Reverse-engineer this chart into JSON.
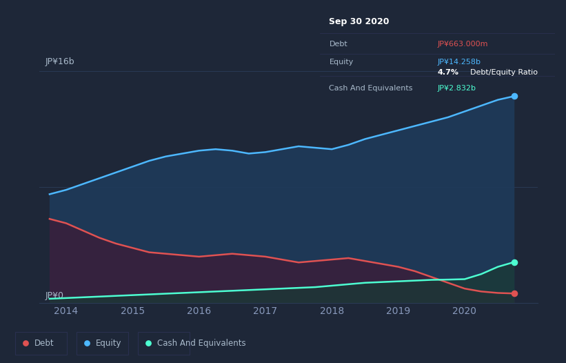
{
  "background_color": "#1e2738",
  "tooltip_bg": "#0d1117",
  "title": "Sep 30 2020",
  "tooltip": {
    "date": "Sep 30 2020",
    "debt_label": "Debt",
    "debt_value": "JP¥663.000m",
    "equity_label": "Equity",
    "equity_value": "JP¥14.258b",
    "ratio": "4.7% Debt/Equity Ratio",
    "cash_label": "Cash And Equivalents",
    "cash_value": "JP¥2.832b"
  },
  "ylabel_top": "JP¥16b",
  "ylabel_bottom": "JP¥0",
  "x_labels": [
    "2014",
    "2015",
    "2016",
    "2017",
    "2018",
    "2019",
    "2020"
  ],
  "debt_color": "#e05252",
  "equity_color": "#4db8ff",
  "cash_color": "#4dffd2",
  "equity_fill": "#1e3a5a",
  "debt_fill": "#3a1f3a",
  "cash_fill": "#1a3a35",
  "equity_data_x": [
    2013.75,
    2014.0,
    2014.25,
    2014.5,
    2014.75,
    2015.0,
    2015.25,
    2015.5,
    2015.75,
    2016.0,
    2016.25,
    2016.5,
    2016.75,
    2017.0,
    2017.25,
    2017.5,
    2017.75,
    2018.0,
    2018.25,
    2018.5,
    2018.75,
    2019.0,
    2019.25,
    2019.5,
    2019.75,
    2020.0,
    2020.25,
    2020.5,
    2020.75
  ],
  "equity_data_y": [
    7.5,
    7.8,
    8.2,
    8.6,
    9.0,
    9.4,
    9.8,
    10.1,
    10.3,
    10.5,
    10.6,
    10.5,
    10.3,
    10.4,
    10.6,
    10.8,
    10.7,
    10.6,
    10.9,
    11.3,
    11.6,
    11.9,
    12.2,
    12.5,
    12.8,
    13.2,
    13.6,
    14.0,
    14.258
  ],
  "debt_data_x": [
    2013.75,
    2014.0,
    2014.25,
    2014.5,
    2014.75,
    2015.0,
    2015.25,
    2015.5,
    2015.75,
    2016.0,
    2016.25,
    2016.5,
    2016.75,
    2017.0,
    2017.25,
    2017.5,
    2017.75,
    2018.0,
    2018.25,
    2018.5,
    2018.75,
    2019.0,
    2019.25,
    2019.5,
    2019.75,
    2020.0,
    2020.25,
    2020.5,
    2020.75
  ],
  "debt_data_y": [
    5.8,
    5.5,
    5.0,
    4.5,
    4.1,
    3.8,
    3.5,
    3.4,
    3.3,
    3.2,
    3.3,
    3.4,
    3.3,
    3.2,
    3.0,
    2.8,
    2.9,
    3.0,
    3.1,
    2.9,
    2.7,
    2.5,
    2.2,
    1.8,
    1.4,
    1.0,
    0.8,
    0.7,
    0.663
  ],
  "cash_data_x": [
    2013.75,
    2014.0,
    2014.25,
    2014.5,
    2014.75,
    2015.0,
    2015.25,
    2015.5,
    2015.75,
    2016.0,
    2016.25,
    2016.5,
    2016.75,
    2017.0,
    2017.25,
    2017.5,
    2017.75,
    2018.0,
    2018.25,
    2018.5,
    2018.75,
    2019.0,
    2019.25,
    2019.5,
    2019.75,
    2020.0,
    2020.25,
    2020.5,
    2020.75
  ],
  "cash_data_y": [
    0.3,
    0.35,
    0.4,
    0.45,
    0.5,
    0.55,
    0.6,
    0.65,
    0.7,
    0.75,
    0.8,
    0.85,
    0.9,
    0.95,
    1.0,
    1.05,
    1.1,
    1.2,
    1.3,
    1.4,
    1.45,
    1.5,
    1.55,
    1.6,
    1.62,
    1.65,
    2.0,
    2.5,
    2.832
  ],
  "xlim": [
    2013.6,
    2021.1
  ],
  "ylim": [
    0,
    17.5
  ],
  "grid_color": "#2a3a55",
  "tick_color": "#8899bb",
  "text_color": "#aabbcc",
  "separator_color": "#2a3050"
}
